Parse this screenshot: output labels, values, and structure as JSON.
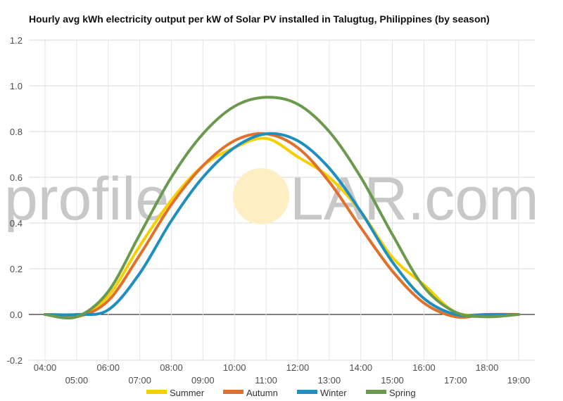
{
  "watermark": {
    "left": "profile",
    "right": "LAR.com",
    "sun_color": "#fdefc3"
  },
  "chart_data": {
    "type": "line",
    "title": "Hourly avg kWh electricity output per kW of Solar PV installed in Talugtug, Philippines (by season)",
    "xlabel": "",
    "ylabel": "",
    "ylim": [
      -0.2,
      1.2
    ],
    "yticks": [
      -0.2,
      0.0,
      0.2,
      0.4,
      0.6,
      0.8,
      1.0,
      1.2
    ],
    "x": [
      4,
      5,
      6,
      7,
      8,
      9,
      10,
      11,
      12,
      13,
      14,
      15,
      16,
      17,
      18,
      19
    ],
    "x_tick_labels": [
      "04:00",
      "05:00",
      "06:00",
      "07:00",
      "08:00",
      "09:00",
      "10:00",
      "11:00",
      "12:00",
      "13:00",
      "14:00",
      "15:00",
      "16:00",
      "17:00",
      "18:00",
      "19:00"
    ],
    "grid": true,
    "legend_position": "bottom",
    "series": [
      {
        "name": "Summer",
        "color": "#f5d000",
        "values": [
          0.0,
          -0.01,
          0.08,
          0.3,
          0.5,
          0.65,
          0.73,
          0.77,
          0.69,
          0.6,
          0.45,
          0.25,
          0.13,
          0.01,
          0.0,
          0.0
        ]
      },
      {
        "name": "Autumn",
        "color": "#e0702a",
        "values": [
          0.0,
          -0.01,
          0.06,
          0.26,
          0.48,
          0.65,
          0.76,
          0.79,
          0.73,
          0.58,
          0.38,
          0.19,
          0.05,
          -0.01,
          0.0,
          0.0
        ]
      },
      {
        "name": "Winter",
        "color": "#1f8ec0",
        "values": [
          0.0,
          0.0,
          0.02,
          0.18,
          0.41,
          0.6,
          0.73,
          0.79,
          0.76,
          0.64,
          0.45,
          0.23,
          0.07,
          0.0,
          0.0,
          0.0
        ]
      },
      {
        "name": "Spring",
        "color": "#6b9a4f",
        "values": [
          0.0,
          -0.01,
          0.1,
          0.35,
          0.6,
          0.79,
          0.91,
          0.95,
          0.92,
          0.8,
          0.6,
          0.35,
          0.12,
          0.01,
          -0.01,
          0.0
        ]
      }
    ]
  }
}
